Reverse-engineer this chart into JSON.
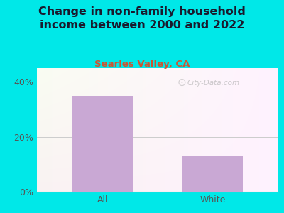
{
  "title": "Change in non-family household\nincome between 2000 and 2022",
  "subtitle": "Searles Valley, CA",
  "categories": [
    "All",
    "White"
  ],
  "values": [
    35,
    13
  ],
  "bar_color": "#c9a8d4",
  "background_color": "#00e8e8",
  "title_color": "#1a1a2e",
  "subtitle_color": "#cc5533",
  "tick_label_color": "#555555",
  "yticks": [
    0,
    20,
    40
  ],
  "ytick_labels": [
    "0%",
    "20%",
    "40%"
  ],
  "ylim": [
    0,
    45
  ],
  "title_fontsize": 11.5,
  "subtitle_fontsize": 9.5,
  "tick_fontsize": 9,
  "watermark": "City-Data.com"
}
